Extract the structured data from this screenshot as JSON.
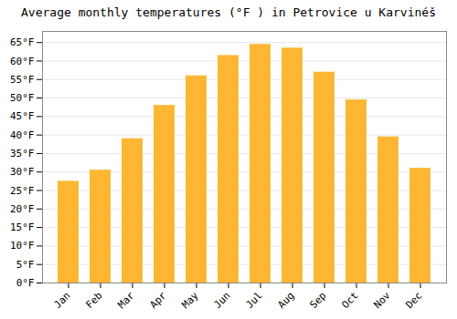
{
  "chart_data": {
    "type": "bar",
    "title": "Average monthly temperatures (°F ) in Petrovice u Karvinéš",
    "categories": [
      "Jan",
      "Feb",
      "Mar",
      "Apr",
      "May",
      "Jun",
      "Jul",
      "Aug",
      "Sep",
      "Oct",
      "Nov",
      "Dec"
    ],
    "values": [
      27.5,
      30.5,
      39.0,
      48.0,
      56.0,
      61.5,
      64.5,
      63.5,
      57.0,
      49.5,
      39.5,
      31.0
    ],
    "color": "#FFB733",
    "ylim": [
      0,
      68
    ],
    "yticks": [
      {
        "value": 0,
        "label": "0°F"
      },
      {
        "value": 5,
        "label": "5°F"
      },
      {
        "value": 10,
        "label": "10°F"
      },
      {
        "value": 15,
        "label": "15°F"
      },
      {
        "value": 20,
        "label": "20°F"
      },
      {
        "value": 25,
        "label": "25°F"
      },
      {
        "value": 30,
        "label": "30°F"
      },
      {
        "value": 35,
        "label": "35°F"
      },
      {
        "value": 40,
        "label": "40°F"
      },
      {
        "value": 45,
        "label": "45°F"
      },
      {
        "value": 50,
        "label": "50°F"
      },
      {
        "value": 55,
        "label": "55°F"
      },
      {
        "value": 60,
        "label": "60°F"
      },
      {
        "value": 65,
        "label": "65°F"
      }
    ],
    "grid": true
  }
}
